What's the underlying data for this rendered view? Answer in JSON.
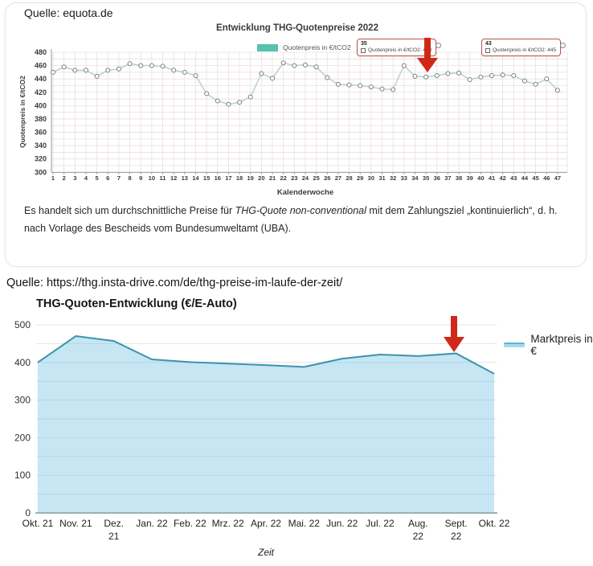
{
  "colors": {
    "teal_swatch": "#55c3ad",
    "top_line": "#b5d6d0",
    "marker_stroke": "#7d7d7d",
    "tooltip_border": "#b85450",
    "arrow_red": "#d02818",
    "bottom_line": "#3d93ad",
    "bottom_fill": "rgba(126,200,227,0.45)",
    "grid_top": "#eadfdf",
    "grid_bottom": "#e2e2e2",
    "axis_gray": "#9a9a9a"
  },
  "section_top": {
    "source": "Quelle: equota.de",
    "note": {
      "part1": "Es handelt sich um durchschnittliche Preise für ",
      "italic": "THG-Quote non-conventional",
      "part2": " mit dem Zahlungsziel „kontinuierlich“, d. h. nach Vorlage des Bescheids vom Bundesumweltamt (UBA)."
    }
  },
  "section_bottom": {
    "source": "Quelle: https://thg.insta-drive.com/de/thg-preise-im-laufe-der-zeit/"
  },
  "chart_data": [
    {
      "id": "thg-quotenpreise-2022",
      "type": "line",
      "title": "Entwicklung THG-Quotenpreise 2022",
      "xlabel": "Kalenderwoche",
      "ylabel": "Quotenpreis in €/tCO2",
      "legend": [
        "Quotenpreis in €/tCO2"
      ],
      "legend_position": "top-center",
      "grid": true,
      "x": [
        1,
        2,
        3,
        4,
        5,
        6,
        7,
        8,
        9,
        10,
        11,
        12,
        13,
        14,
        15,
        16,
        17,
        18,
        19,
        20,
        21,
        22,
        23,
        24,
        25,
        26,
        27,
        28,
        29,
        30,
        31,
        32,
        33,
        34,
        35,
        36,
        37,
        38,
        39,
        40,
        41,
        42,
        43,
        44,
        45,
        46,
        47
      ],
      "values": [
        450,
        458,
        453,
        453,
        444,
        453,
        455,
        463,
        460,
        460,
        459,
        453,
        450,
        445,
        418,
        407,
        402,
        405,
        413,
        448,
        441,
        464,
        460,
        461,
        458,
        442,
        432,
        431,
        430,
        428,
        425,
        424,
        460,
        444,
        443,
        445,
        448,
        449,
        439,
        443,
        445,
        446,
        445,
        437,
        432,
        440,
        423
      ],
      "ylim": [
        300,
        480
      ],
      "yticks": [
        300,
        320,
        340,
        360,
        380,
        400,
        420,
        440,
        460,
        480
      ],
      "grid_step_y": 10,
      "callouts": [
        {
          "week": "35",
          "label": "Quotenpreis in €/tCO2: 443",
          "value": 443
        },
        {
          "week": "43",
          "label": "Quotenpreis in €/tCO2: 445",
          "value": 445
        }
      ]
    },
    {
      "id": "thg-quoten-entwicklung",
      "type": "area",
      "title": "THG-Quoten-Entwicklung (€/E-Auto)",
      "xlabel": "Zeit",
      "legend": [
        "Marktpreis in €"
      ],
      "legend_position": "right",
      "grid": true,
      "categories": [
        "Okt. 21",
        "Nov. 21",
        "Dez.\n21",
        "Jan. 22",
        "Feb. 22",
        "Mrz. 22",
        "Apr. 22",
        "Mai. 22",
        "Jun. 22",
        "Jul. 22",
        "Aug.\n22",
        "Sept.\n22",
        "Okt. 22"
      ],
      "values": [
        400,
        470,
        457,
        408,
        401,
        397,
        393,
        388,
        410,
        421,
        417,
        424,
        370
      ],
      "ylim": [
        0,
        500
      ],
      "yticks": [
        0,
        100,
        200,
        300,
        400,
        500
      ],
      "grid_step_y": 50
    }
  ]
}
